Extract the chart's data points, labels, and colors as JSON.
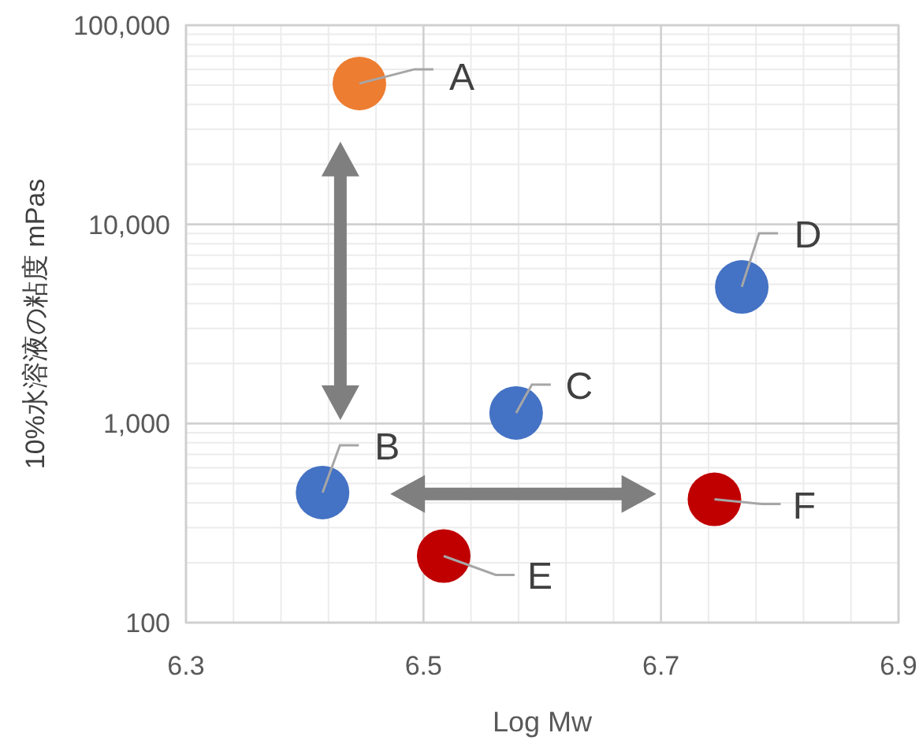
{
  "chart_data": {
    "type": "scatter",
    "xlabel": "Log Mw",
    "ylabel": "10%水溶液の粘度 mPas",
    "x": [
      6.446,
      6.415,
      6.578,
      6.768,
      6.517,
      6.745
    ],
    "series": [
      {
        "values": [
          51000,
          450,
          1130,
          4850,
          216,
          416
        ],
        "colors": [
          "#ed7d31",
          "#4472c4",
          "#4472c4",
          "#4472c4",
          "#c00000",
          "#c00000"
        ]
      }
    ],
    "xlim": [
      6.3,
      6.9
    ],
    "xticks": [
      6.3,
      6.5,
      6.7,
      6.9
    ],
    "ylim": [
      100,
      100000
    ],
    "yticks": [
      {
        "value": 100,
        "label": "100"
      },
      {
        "value": 1000,
        "label": "1,000"
      },
      {
        "value": 10000,
        "label": "10,000"
      },
      {
        "value": 100000,
        "label": "100,000"
      }
    ],
    "log": "y",
    "grid": true,
    "marker": "circle",
    "annotations": [
      {
        "text": "A",
        "x": 6.446,
        "y": 51000
      },
      {
        "text": "B",
        "x": 6.415,
        "y": 450
      },
      {
        "text": "C",
        "x": 6.578,
        "y": 1130
      },
      {
        "text": "D",
        "x": 6.768,
        "y": 4850
      },
      {
        "text": "E",
        "x": 6.517,
        "y": 216
      },
      {
        "text": "F",
        "x": 6.745,
        "y": 416
      }
    ]
  }
}
